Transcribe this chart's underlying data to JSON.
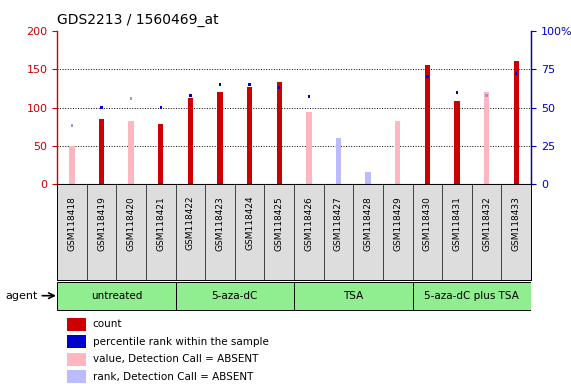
{
  "title": "GDS2213 / 1560469_at",
  "samples": [
    "GSM118418",
    "GSM118419",
    "GSM118420",
    "GSM118421",
    "GSM118422",
    "GSM118423",
    "GSM118424",
    "GSM118425",
    "GSM118426",
    "GSM118427",
    "GSM118428",
    "GSM118429",
    "GSM118430",
    "GSM118431",
    "GSM118432",
    "GSM118433"
  ],
  "count_values": [
    null,
    85,
    null,
    78,
    113,
    120,
    127,
    133,
    null,
    null,
    null,
    null,
    155,
    108,
    null,
    160
  ],
  "count_absent_values": [
    50,
    null,
    83,
    null,
    null,
    null,
    null,
    null,
    94,
    45,
    null,
    82,
    null,
    null,
    120,
    null
  ],
  "percentile_rank": [
    null,
    50,
    null,
    50,
    58,
    65,
    65,
    63,
    57,
    null,
    null,
    null,
    70,
    60,
    null,
    72
  ],
  "percentile_rank_absent": [
    38,
    null,
    56,
    null,
    null,
    null,
    null,
    null,
    null,
    null,
    null,
    null,
    null,
    null,
    58,
    null
  ],
  "rank_absent_values": [
    null,
    null,
    null,
    null,
    null,
    null,
    null,
    null,
    null,
    30,
    8,
    null,
    null,
    null,
    null,
    null
  ],
  "groups": [
    {
      "label": "untreated",
      "start": 0,
      "end": 3
    },
    {
      "label": "5-aza-dC",
      "start": 4,
      "end": 7
    },
    {
      "label": "TSA",
      "start": 8,
      "end": 11
    },
    {
      "label": "5-aza-dC plus TSA",
      "start": 12,
      "end": 15
    }
  ],
  "ylim": [
    0,
    200
  ],
  "yticks_left": [
    0,
    50,
    100,
    150,
    200
  ],
  "yticks_right": [
    0,
    25,
    50,
    75,
    100
  ],
  "ytick_labels_right": [
    "0",
    "25",
    "50",
    "75",
    "100%"
  ],
  "count_color": "#CC0000",
  "count_absent_color": "#FFB6C1",
  "percentile_color": "#0000CC",
  "percentile_absent_color": "#9999CC",
  "rank_absent_color": "#BBBBFF",
  "group_color": "#90EE90",
  "left_axis_color": "#CC0000",
  "right_axis_color": "#0000CC",
  "agent_label": "agent"
}
